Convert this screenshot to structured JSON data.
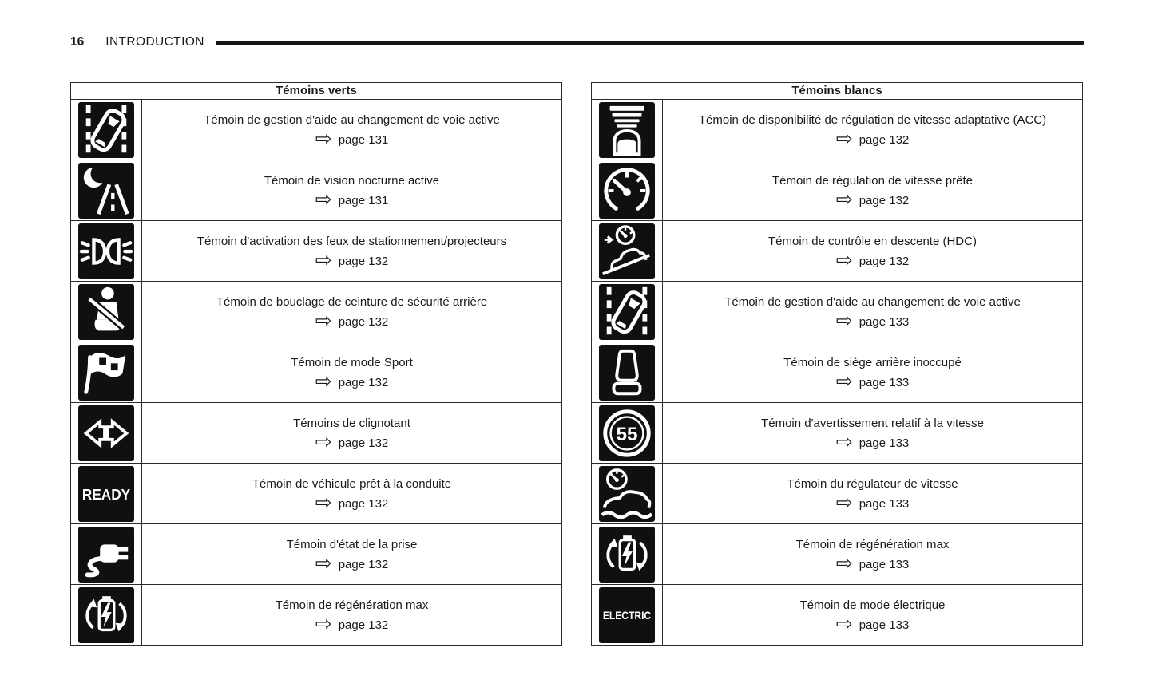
{
  "header": {
    "page_number": "16",
    "section_title": "INTRODUCTION"
  },
  "glyphs": {
    "page_arrow": "⇨"
  },
  "colors": {
    "icon_tile": "#101010",
    "rule": "#151515",
    "border": "#2b2b2b"
  },
  "tables": [
    {
      "title": "Témoins verts",
      "rows": [
        {
          "icon": "lane-change-assist-icon",
          "label": "Témoin de gestion d'aide au changement de voie active",
          "page_ref": "page 131"
        },
        {
          "icon": "night-vision-icon",
          "label": "Témoin de vision nocturne active",
          "page_ref": "page 131"
        },
        {
          "icon": "parking-lights-icon",
          "label": "Témoin d'activation des feux de stationnement/projecteurs",
          "page_ref": "page 132"
        },
        {
          "icon": "rear-seatbelt-icon",
          "label": "Témoin de bouclage de ceinture de sécurité arrière",
          "page_ref": "page 132"
        },
        {
          "icon": "sport-mode-flag-icon",
          "label": "Témoin de mode Sport",
          "page_ref": "page 132"
        },
        {
          "icon": "turn-signal-icon",
          "label": "Témoins de clignotant",
          "page_ref": "page 132"
        },
        {
          "icon": "ready-icon",
          "label": "Témoin de véhicule prêt à la conduite",
          "page_ref": "page 132"
        },
        {
          "icon": "charging-plug-icon",
          "label": "Témoin d'état de la prise",
          "page_ref": "page 132"
        },
        {
          "icon": "regen-max-icon",
          "label": "Témoin de régénération max",
          "page_ref": "page 132"
        }
      ]
    },
    {
      "title": "Témoins blancs",
      "rows": [
        {
          "icon": "acc-icon",
          "label": "Témoin de disponibilité de régulation de vitesse adaptative (ACC)",
          "page_ref": "page 132"
        },
        {
          "icon": "speedometer-icon",
          "label": "Témoin de régulation de vitesse prête",
          "page_ref": "page 132"
        },
        {
          "icon": "hill-descent-icon",
          "label": "Témoin de contrôle en descente (HDC)",
          "page_ref": "page 132"
        },
        {
          "icon": "lane-change-assist-icon",
          "label": "Témoin de gestion d'aide au changement de voie active",
          "page_ref": "page 133"
        },
        {
          "icon": "rear-seat-icon",
          "label": "Témoin de siège arrière inoccupé",
          "page_ref": "page 133"
        },
        {
          "icon": "speed-warning-icon",
          "label": "Témoin d'avertissement relatif à la vitesse",
          "page_ref": "page 133"
        },
        {
          "icon": "cruise-control-icon",
          "label": "Témoin du régulateur de vitesse",
          "page_ref": "page 133"
        },
        {
          "icon": "regen-max-icon",
          "label": "Témoin de régénération max",
          "page_ref": "page 133"
        },
        {
          "icon": "electric-mode-icon",
          "label": "Témoin de mode électrique",
          "page_ref": "page 133"
        }
      ]
    }
  ]
}
